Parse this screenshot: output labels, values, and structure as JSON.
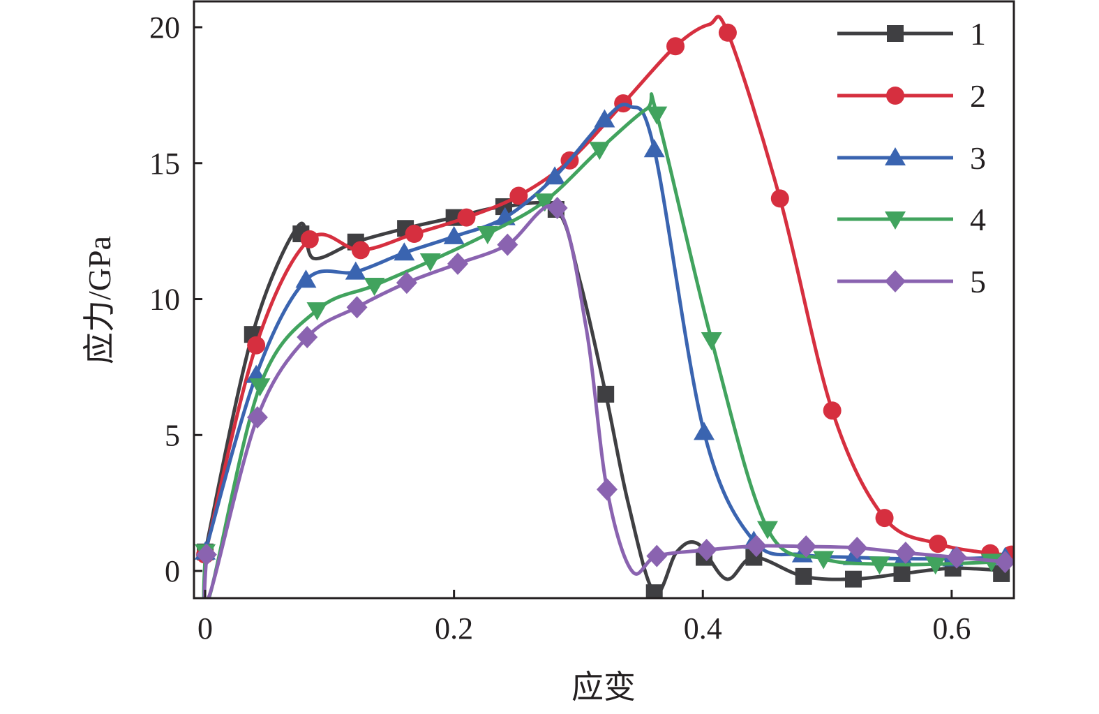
{
  "chart_data": {
    "type": "line",
    "title": "",
    "xlabel": "应变",
    "ylabel": "应力/GPa",
    "xlim": [
      -0.009,
      0.65
    ],
    "ylim": [
      -1.0,
      20.95
    ],
    "xticks": [
      0,
      0.2,
      0.4,
      0.6
    ],
    "xtick_labels": [
      "0",
      "0.2",
      "0.4",
      "0.6"
    ],
    "yticks": [
      0,
      5,
      10,
      15,
      20
    ],
    "ytick_labels": [
      "0",
      "5",
      "10",
      "15",
      "20"
    ],
    "grid": false,
    "legend_placement": "top-right",
    "series": [
      {
        "name": "1",
        "color": "#3f3f42",
        "marker": "square",
        "markers": [
          [
            0,
            0.7
          ],
          [
            0.038,
            8.7
          ],
          [
            0.077,
            12.4
          ],
          [
            0.121,
            12.1
          ],
          [
            0.161,
            12.6
          ],
          [
            0.2,
            13.0
          ],
          [
            0.24,
            13.4
          ],
          [
            0.282,
            13.3
          ],
          [
            0.322,
            6.5
          ],
          [
            0.361,
            -0.8
          ],
          [
            0.401,
            0.5
          ],
          [
            0.441,
            0.5
          ],
          [
            0.481,
            -0.2
          ],
          [
            0.521,
            -0.3
          ],
          [
            0.56,
            -0.1
          ],
          [
            0.601,
            0.1
          ],
          [
            0.64,
            -0.1
          ]
        ],
        "curve": [
          [
            0,
            0.7
          ],
          [
            0.038,
            8.7
          ],
          [
            0.075,
            12.7
          ],
          [
            0.087,
            11.5
          ],
          [
            0.121,
            12.1
          ],
          [
            0.161,
            12.6
          ],
          [
            0.2,
            13.0
          ],
          [
            0.24,
            13.4
          ],
          [
            0.282,
            13.3
          ],
          [
            0.301,
            10.7
          ],
          [
            0.322,
            6.5
          ],
          [
            0.34,
            2.5
          ],
          [
            0.361,
            -0.8
          ],
          [
            0.379,
            0.7
          ],
          [
            0.396,
            1.0
          ],
          [
            0.419,
            -0.3
          ],
          [
            0.441,
            0.5
          ],
          [
            0.481,
            -0.2
          ],
          [
            0.521,
            -0.3
          ],
          [
            0.56,
            -0.1
          ],
          [
            0.601,
            0.1
          ],
          [
            0.645,
            0
          ]
        ]
      },
      {
        "name": "2",
        "color": "#d62f3f",
        "marker": "circle",
        "markers": [
          [
            0,
            0.6
          ],
          [
            0.041,
            8.3
          ],
          [
            0.084,
            12.2
          ],
          [
            0.125,
            11.8
          ],
          [
            0.168,
            12.4
          ],
          [
            0.21,
            13.0
          ],
          [
            0.252,
            13.8
          ],
          [
            0.293,
            15.1
          ],
          [
            0.336,
            17.2
          ],
          [
            0.378,
            19.3
          ],
          [
            0.42,
            19.8
          ],
          [
            0.462,
            13.7
          ],
          [
            0.504,
            5.9
          ],
          [
            0.546,
            1.95
          ],
          [
            0.589,
            1.0
          ],
          [
            0.631,
            0.65
          ],
          [
            0.648,
            0.6
          ]
        ],
        "curve": [
          [
            0,
            0.6
          ],
          [
            0.041,
            8.3
          ],
          [
            0.084,
            12.2
          ],
          [
            0.125,
            11.8
          ],
          [
            0.168,
            12.4
          ],
          [
            0.21,
            13.0
          ],
          [
            0.252,
            13.8
          ],
          [
            0.293,
            15.1
          ],
          [
            0.336,
            17.2
          ],
          [
            0.378,
            19.3
          ],
          [
            0.405,
            20.1
          ],
          [
            0.42,
            19.8
          ],
          [
            0.462,
            13.7
          ],
          [
            0.504,
            5.9
          ],
          [
            0.546,
            1.95
          ],
          [
            0.589,
            1.0
          ],
          [
            0.631,
            0.65
          ],
          [
            0.648,
            0.6
          ]
        ]
      },
      {
        "name": "3",
        "color": "#3a64b0",
        "marker": "triangle-up",
        "markers": [
          [
            0,
            0.7
          ],
          [
            0.041,
            7.2
          ],
          [
            0.081,
            10.7
          ],
          [
            0.121,
            11.0
          ],
          [
            0.16,
            11.7
          ],
          [
            0.2,
            12.3
          ],
          [
            0.241,
            13.0
          ],
          [
            0.281,
            14.5
          ],
          [
            0.321,
            16.6
          ],
          [
            0.361,
            15.5
          ],
          [
            0.401,
            5.1
          ],
          [
            0.441,
            1.1
          ],
          [
            0.48,
            0.6
          ],
          [
            0.521,
            0.5
          ],
          [
            0.561,
            0.45
          ],
          [
            0.601,
            0.45
          ],
          [
            0.643,
            0.5
          ]
        ],
        "curve": [
          [
            0,
            0.7
          ],
          [
            0.041,
            7.2
          ],
          [
            0.081,
            10.7
          ],
          [
            0.121,
            11.0
          ],
          [
            0.16,
            11.7
          ],
          [
            0.2,
            12.3
          ],
          [
            0.241,
            13.0
          ],
          [
            0.281,
            14.5
          ],
          [
            0.321,
            16.6
          ],
          [
            0.341,
            17.1
          ],
          [
            0.361,
            15.5
          ],
          [
            0.401,
            5.1
          ],
          [
            0.441,
            1.1
          ],
          [
            0.48,
            0.6
          ],
          [
            0.521,
            0.5
          ],
          [
            0.561,
            0.45
          ],
          [
            0.601,
            0.45
          ],
          [
            0.645,
            0.5
          ]
        ]
      },
      {
        "name": "4",
        "color": "#41a35e",
        "marker": "triangle-down",
        "markers": [
          [
            0,
            0.7
          ],
          [
            0.044,
            6.8
          ],
          [
            0.09,
            9.6
          ],
          [
            0.136,
            10.5
          ],
          [
            0.181,
            11.4
          ],
          [
            0.227,
            12.4
          ],
          [
            0.273,
            13.6
          ],
          [
            0.317,
            15.5
          ],
          [
            0.363,
            16.8
          ],
          [
            0.407,
            8.5
          ],
          [
            0.452,
            1.55
          ],
          [
            0.497,
            0.45
          ],
          [
            0.542,
            0.25
          ],
          [
            0.587,
            0.25
          ],
          [
            0.632,
            0.35
          ]
        ],
        "curve": [
          [
            0,
            0.7
          ],
          [
            0.003,
            -1.0
          ],
          [
            0.044,
            6.8
          ],
          [
            0.09,
            9.6
          ],
          [
            0.136,
            10.5
          ],
          [
            0.181,
            11.4
          ],
          [
            0.227,
            12.4
          ],
          [
            0.273,
            13.6
          ],
          [
            0.317,
            15.5
          ],
          [
            0.355,
            17.0
          ],
          [
            0.363,
            16.8
          ],
          [
            0.407,
            8.5
          ],
          [
            0.452,
            1.55
          ],
          [
            0.497,
            0.45
          ],
          [
            0.542,
            0.25
          ],
          [
            0.587,
            0.25
          ],
          [
            0.645,
            0.35
          ]
        ]
      },
      {
        "name": "5",
        "color": "#8a63b0",
        "marker": "diamond",
        "markers": [
          [
            0.001,
            0.6
          ],
          [
            0.042,
            5.65
          ],
          [
            0.082,
            8.6
          ],
          [
            0.122,
            9.7
          ],
          [
            0.162,
            10.6
          ],
          [
            0.203,
            11.3
          ],
          [
            0.243,
            12.0
          ],
          [
            0.283,
            13.35
          ],
          [
            0.323,
            3.0
          ],
          [
            0.363,
            0.55
          ],
          [
            0.403,
            0.77
          ],
          [
            0.443,
            0.92
          ],
          [
            0.483,
            0.9
          ],
          [
            0.524,
            0.85
          ],
          [
            0.563,
            0.67
          ],
          [
            0.604,
            0.5
          ],
          [
            0.643,
            0.33
          ]
        ],
        "curve": [
          [
            0.001,
            0.6
          ],
          [
            0.003,
            -0.95
          ],
          [
            0.042,
            5.65
          ],
          [
            0.082,
            8.6
          ],
          [
            0.122,
            9.7
          ],
          [
            0.162,
            10.6
          ],
          [
            0.203,
            11.3
          ],
          [
            0.243,
            12.0
          ],
          [
            0.283,
            13.35
          ],
          [
            0.306,
            9.0
          ],
          [
            0.323,
            3.0
          ],
          [
            0.343,
            0.0
          ],
          [
            0.363,
            0.55
          ],
          [
            0.403,
            0.77
          ],
          [
            0.443,
            0.92
          ],
          [
            0.483,
            0.9
          ],
          [
            0.524,
            0.85
          ],
          [
            0.563,
            0.67
          ],
          [
            0.604,
            0.5
          ],
          [
            0.645,
            0.33
          ]
        ]
      }
    ]
  }
}
